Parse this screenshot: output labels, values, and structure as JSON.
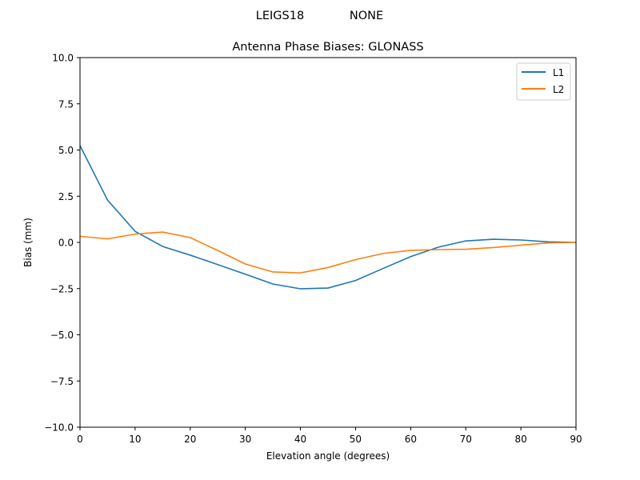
{
  "figure": {
    "suptitle_left": "LEIGS18",
    "suptitle_right": "NONE"
  },
  "chart_data": {
    "type": "line",
    "title": "Antenna Phase Biases: GLONASS",
    "xlabel": "Elevation angle (degrees)",
    "ylabel": "Bias (mm)",
    "xlim": [
      0,
      90
    ],
    "ylim": [
      -10,
      10
    ],
    "xticks": [
      0,
      10,
      20,
      30,
      40,
      50,
      60,
      70,
      80,
      90
    ],
    "xtick_labels": [
      "0",
      "10",
      "20",
      "30",
      "40",
      "50",
      "60",
      "70",
      "80",
      "90"
    ],
    "yticks": [
      10,
      7.5,
      5,
      2.5,
      0,
      -2.5,
      -5,
      -7.5,
      -10
    ],
    "ytick_labels": [
      "10.0",
      "7.5",
      "5.0",
      "2.5",
      "0.0",
      "−2.5",
      "−5.0",
      "−7.5",
      "−10.0"
    ],
    "grid": false,
    "legend_position": "upper right",
    "x": [
      0,
      5,
      10,
      15,
      20,
      25,
      30,
      35,
      40,
      45,
      50,
      55,
      60,
      65,
      70,
      75,
      80,
      85,
      90
    ],
    "series": [
      {
        "name": "L1",
        "color": "#1f77b4",
        "values": [
          5.24,
          2.29,
          0.6,
          -0.22,
          -0.69,
          -1.2,
          -1.72,
          -2.25,
          -2.51,
          -2.47,
          -2.06,
          -1.41,
          -0.77,
          -0.26,
          0.08,
          0.17,
          0.13,
          0.03,
          0.0
        ]
      },
      {
        "name": "L2",
        "color": "#ff7f0e",
        "values": [
          0.33,
          0.19,
          0.45,
          0.56,
          0.26,
          -0.44,
          -1.17,
          -1.6,
          -1.65,
          -1.36,
          -0.93,
          -0.6,
          -0.43,
          -0.39,
          -0.37,
          -0.28,
          -0.15,
          -0.03,
          0.0
        ]
      }
    ]
  }
}
